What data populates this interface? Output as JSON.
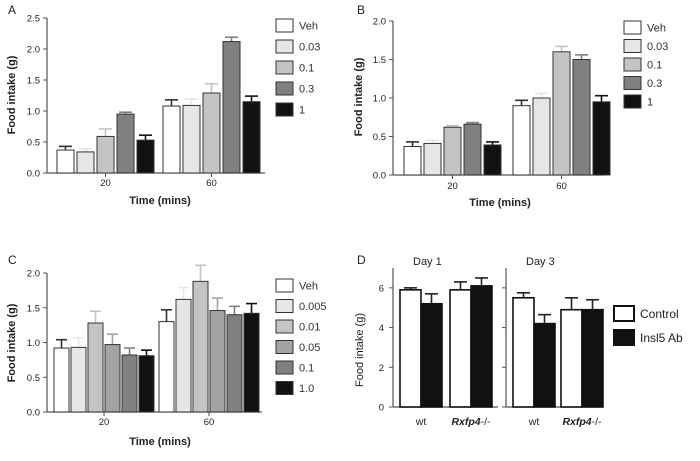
{
  "colors": {
    "axis": "#555555",
    "veh": "#ffffff",
    "g1": "#e6e6e6",
    "g2": "#c4c4c4",
    "g3": "#a3a3a3",
    "g4": "#808080",
    "g5": "#111111"
  },
  "chart_data": [
    {
      "panel_label": "A",
      "type": "bar",
      "ylabel": "Food intake (g)",
      "xlabel": "Time (mins)",
      "ylim": [
        0,
        2.5
      ],
      "yticks": [
        "0.0",
        "0.5",
        "1.0",
        "1.5",
        "2.0",
        "2.5"
      ],
      "categories": [
        "20",
        "60"
      ],
      "legend_position": "right",
      "series": [
        {
          "name": "Veh",
          "values": [
            0.37,
            1.08
          ],
          "errors": [
            0.06,
            0.1
          ],
          "color": "#ffffff"
        },
        {
          "name": "0.03",
          "values": [
            0.34,
            1.09
          ],
          "errors": [
            0.05,
            0.1
          ],
          "color": "#e6e6e6"
        },
        {
          "name": "0.1",
          "values": [
            0.59,
            1.29
          ],
          "errors": [
            0.12,
            0.15
          ],
          "color": "#c4c4c4"
        },
        {
          "name": "0.3",
          "values": [
            0.95,
            2.12
          ],
          "errors": [
            0.03,
            0.07
          ],
          "color": "#808080"
        },
        {
          "name": "1",
          "values": [
            0.53,
            1.15
          ],
          "errors": [
            0.08,
            0.09
          ],
          "color": "#111111"
        }
      ]
    },
    {
      "panel_label": "B",
      "type": "bar",
      "ylabel": "Food intake (g)",
      "xlabel": "Time (mins)",
      "ylim": [
        0,
        2.0
      ],
      "yticks": [
        "0.0",
        "0.5",
        "1.0",
        "1.5",
        "2.0"
      ],
      "categories": [
        "20",
        "60"
      ],
      "legend_position": "right",
      "series": [
        {
          "name": "Veh",
          "values": [
            0.37,
            0.9
          ],
          "errors": [
            0.06,
            0.07
          ],
          "color": "#ffffff"
        },
        {
          "name": "0.03",
          "values": [
            0.41,
            1.0
          ],
          "errors": [
            0.04,
            0.06
          ],
          "color": "#e6e6e6"
        },
        {
          "name": "0.1",
          "values": [
            0.62,
            1.6
          ],
          "errors": [
            0.02,
            0.07
          ],
          "color": "#c4c4c4"
        },
        {
          "name": "0.3",
          "values": [
            0.66,
            1.5
          ],
          "errors": [
            0.02,
            0.06
          ],
          "color": "#808080"
        },
        {
          "name": "1",
          "values": [
            0.39,
            0.95
          ],
          "errors": [
            0.04,
            0.08
          ],
          "color": "#111111"
        }
      ]
    },
    {
      "panel_label": "C",
      "type": "bar",
      "ylabel": "Food intake (g)",
      "xlabel": "Time (mins)",
      "ylim": [
        0,
        2.0
      ],
      "yticks": [
        "0.0",
        "0.5",
        "1.0",
        "1.5",
        "2.0"
      ],
      "categories": [
        "20",
        "60"
      ],
      "legend_position": "right",
      "series": [
        {
          "name": "Veh",
          "values": [
            0.92,
            1.3
          ],
          "errors": [
            0.12,
            0.17
          ],
          "color": "#ffffff"
        },
        {
          "name": "0.005",
          "values": [
            0.93,
            1.62
          ],
          "errors": [
            0.14,
            0.17
          ],
          "color": "#e6e6e6"
        },
        {
          "name": "0.01",
          "values": [
            1.28,
            1.88
          ],
          "errors": [
            0.17,
            0.23
          ],
          "color": "#c4c4c4"
        },
        {
          "name": "0.05",
          "values": [
            0.97,
            1.46
          ],
          "errors": [
            0.15,
            0.18
          ],
          "color": "#a3a3a3"
        },
        {
          "name": "0.1",
          "values": [
            0.82,
            1.4
          ],
          "errors": [
            0.1,
            0.12
          ],
          "color": "#808080"
        },
        {
          "name": "1.0",
          "values": [
            0.81,
            1.42
          ],
          "errors": [
            0.08,
            0.14
          ],
          "color": "#111111"
        }
      ]
    },
    {
      "panel_label": "D",
      "type": "bar",
      "ylabel": "Food intake (g)",
      "ylim": [
        0,
        7
      ],
      "yticks": [
        "0",
        "2",
        "4",
        "6"
      ],
      "legend_position": "right",
      "groups": [
        {
          "label": "Day 1",
          "categories": [
            "wt",
            "Rxfp4-/-"
          ]
        },
        {
          "label": "Day 3",
          "categories": [
            "wt",
            "Rxfp4-/-"
          ]
        }
      ],
      "category_labels": [
        {
          "base": "wt",
          "suffix": ""
        },
        {
          "base": "Rxfp4",
          "suffix": "-/-"
        }
      ],
      "series": [
        {
          "name": "Control",
          "values": [
            5.9,
            5.9,
            5.5,
            4.9
          ],
          "errors": [
            0.1,
            0.4,
            0.25,
            0.6
          ],
          "color": "#ffffff"
        },
        {
          "name": "Insl5 Ab",
          "values": [
            5.2,
            6.1,
            4.2,
            4.9
          ],
          "errors": [
            0.5,
            0.4,
            0.45,
            0.5
          ],
          "color": "#111111"
        }
      ]
    }
  ]
}
